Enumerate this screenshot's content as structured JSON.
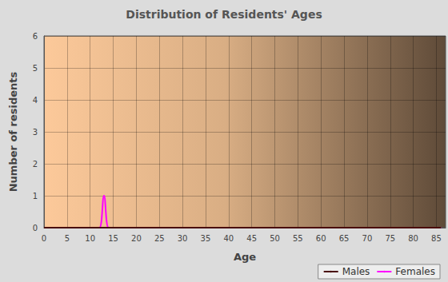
{
  "chart_data": {
    "type": "line",
    "title": "Distribution of Residents' Ages",
    "x_label": "Age",
    "y_label": "Number of residents",
    "x": [
      0,
      1,
      2,
      3,
      4,
      5,
      6,
      7,
      8,
      9,
      10,
      11,
      12,
      13,
      14,
      15,
      16,
      17,
      18,
      19,
      20,
      21,
      22,
      23,
      24,
      25,
      26,
      27,
      28,
      29,
      30,
      31,
      32,
      33,
      34,
      35,
      36,
      37,
      38,
      39,
      40,
      41,
      42,
      43,
      44,
      45,
      46,
      47,
      48,
      49,
      50,
      51,
      52,
      53,
      54,
      55,
      56,
      57,
      58,
      59,
      60,
      61,
      62,
      63,
      64,
      65,
      66,
      67,
      68,
      69,
      70,
      71,
      72,
      73,
      74,
      75,
      76,
      77,
      78,
      79,
      80,
      81,
      82,
      83,
      84,
      85,
      86
    ],
    "series": [
      {
        "name": "Males",
        "color": "#4a0d0d",
        "values": [
          0,
          0,
          0,
          0,
          0,
          0,
          0,
          0,
          0,
          0,
          0,
          0,
          0,
          0,
          0,
          0,
          0,
          0,
          0,
          0,
          0,
          0,
          0,
          0,
          0,
          0,
          0,
          0,
          0,
          0,
          0,
          0,
          0,
          0,
          0,
          0,
          0,
          0,
          0,
          0,
          0,
          0,
          0,
          0,
          0,
          0,
          0,
          0,
          0,
          0,
          0,
          0,
          0,
          0,
          0,
          0,
          0,
          0,
          0,
          0,
          0,
          0,
          0,
          0,
          0,
          0,
          0,
          0,
          0,
          0,
          0,
          0,
          0,
          0,
          0,
          0,
          0,
          0,
          0,
          0,
          0,
          0,
          0,
          0,
          0,
          0,
          0
        ]
      },
      {
        "name": "Females",
        "color": "#ff00ff",
        "values": [
          0,
          0,
          0,
          0,
          0,
          0,
          0,
          0,
          0,
          0,
          0,
          0,
          0,
          1,
          0,
          0,
          0,
          0,
          0,
          0,
          0,
          0,
          0,
          0,
          0,
          0,
          0,
          0,
          0,
          0,
          0,
          0,
          0,
          0,
          0,
          0,
          0,
          0,
          0,
          0,
          0,
          0,
          0,
          0,
          0,
          0,
          0,
          0,
          0,
          0,
          0,
          0,
          0,
          0,
          0,
          0,
          0,
          0,
          0,
          0,
          0,
          0,
          0,
          0,
          0,
          0,
          0,
          0,
          0,
          0,
          0,
          0,
          0,
          0,
          0,
          0,
          0,
          0,
          0,
          0,
          0,
          0,
          0,
          0,
          0,
          0,
          0
        ]
      }
    ],
    "xlim": [
      0,
      87
    ],
    "xticks": [
      0,
      5,
      10,
      15,
      20,
      25,
      30,
      35,
      40,
      45,
      50,
      55,
      60,
      65,
      70,
      75,
      80,
      85
    ],
    "ylim": [
      0,
      6
    ],
    "yticks": [
      0,
      1,
      2,
      3,
      4,
      5,
      6
    ],
    "grid": true,
    "legend": "lower right"
  }
}
